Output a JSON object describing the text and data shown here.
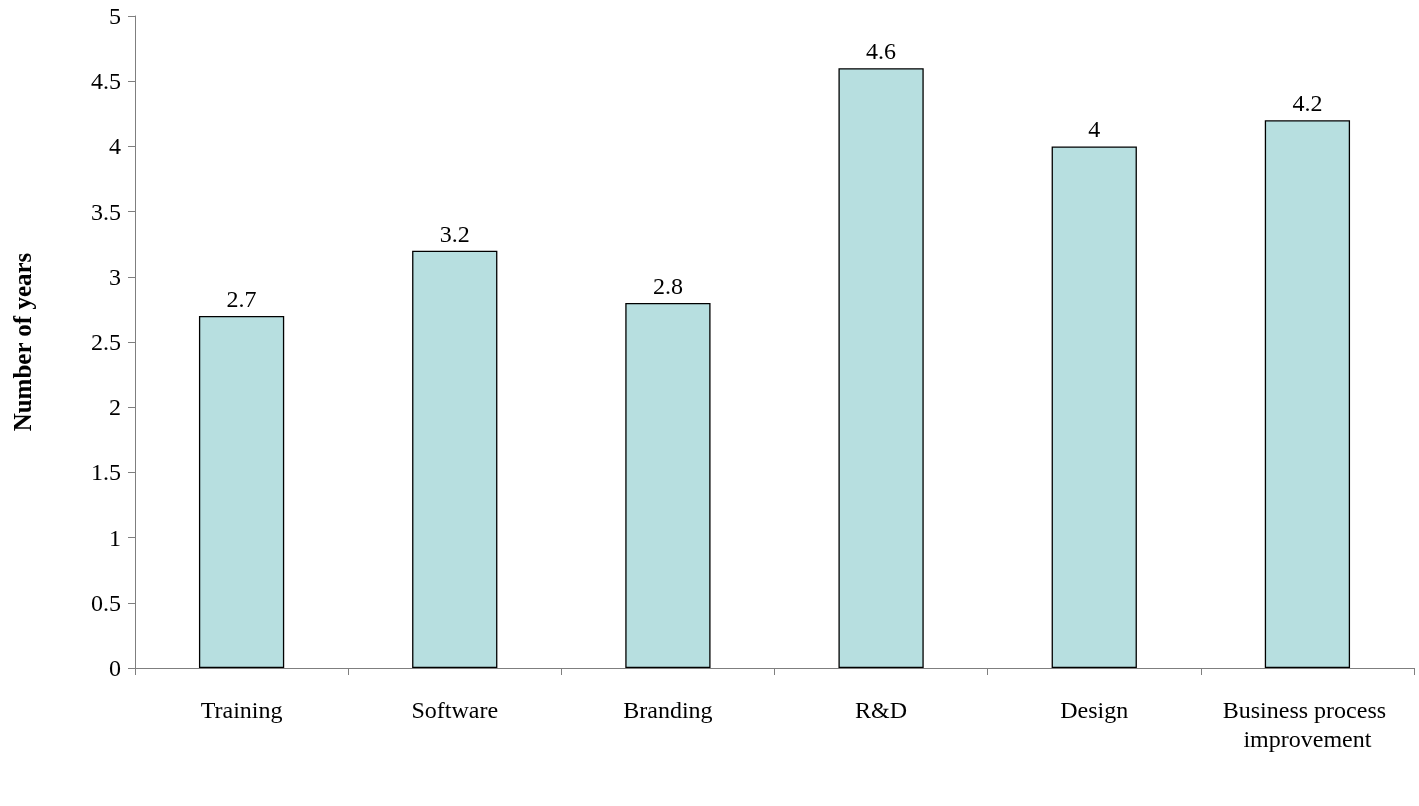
{
  "chart_data": {
    "type": "bar",
    "ylabel": "Number of years",
    "categories": [
      "Training",
      "Software",
      "Branding",
      "R&D",
      "Design",
      "Business process improvement"
    ],
    "values": [
      2.7,
      3.2,
      2.8,
      4.6,
      4,
      4.2
    ],
    "color": "#b7dfe0",
    "ylim": [
      0,
      5
    ],
    "yticks": [
      0,
      0.5,
      1,
      1.5,
      2,
      2.5,
      3,
      3.5,
      4,
      4.5,
      5
    ],
    "grid": false,
    "data_labels": true
  }
}
